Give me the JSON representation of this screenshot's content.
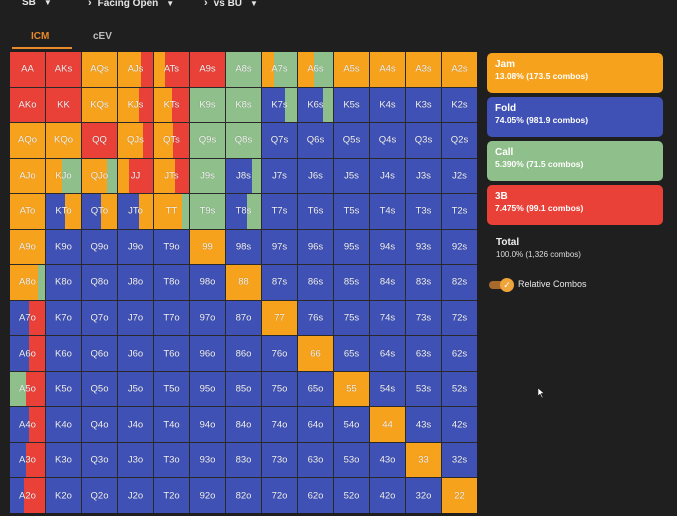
{
  "breadcrumb": {
    "position": "SB",
    "situation": "Facing Open",
    "opponent": "vs BU"
  },
  "tabs": [
    {
      "label": "ICM",
      "active": true
    },
    {
      "label": "cEV",
      "active": false
    }
  ],
  "colors": {
    "jam": "#f7a21c",
    "fold": "#3f51b5",
    "call": "#8fbf8a",
    "threebet": "#e94038",
    "tab_active": "#e8892b",
    "tab_inactive": "#bdbdbd"
  },
  "legend": [
    {
      "key": "jam",
      "title": "Jam",
      "stats": "13.08% (173.5 combos)"
    },
    {
      "key": "fold",
      "title": "Fold",
      "stats": "74.05% (981.9 combos)"
    },
    {
      "key": "call",
      "title": "Call",
      "stats": "5.390% (71.5 combos)"
    },
    {
      "key": "threebet",
      "title": "3B",
      "stats": "7.475% (99.1 combos)"
    }
  ],
  "total": {
    "title": "Total",
    "stats": "100.0% (1,326 combos)"
  },
  "relative_combos": {
    "label": "Relative Combos",
    "checked": true
  },
  "ranks": [
    "A",
    "K",
    "Q",
    "J",
    "T",
    "9",
    "8",
    "7",
    "6",
    "5",
    "4",
    "3",
    "2"
  ],
  "mixes": {
    "AA": [
      [
        "threebet",
        1
      ]
    ],
    "AKs": [
      [
        "threebet",
        1
      ]
    ],
    "AQs": [
      [
        "jam",
        1
      ]
    ],
    "AJs": [
      [
        "jam",
        0.65
      ],
      [
        "threebet",
        0.35
      ]
    ],
    "ATs": [
      [
        "jam",
        0.3
      ],
      [
        "threebet",
        0.7
      ]
    ],
    "A9s": [
      [
        "threebet",
        1
      ]
    ],
    "A8s": [
      [
        "call",
        1
      ]
    ],
    "A7s": [
      [
        "jam",
        0.35
      ],
      [
        "call",
        0.65
      ]
    ],
    "A6s": [
      [
        "jam",
        0.45
      ],
      [
        "call",
        0.55
      ]
    ],
    "A5s": [
      [
        "jam",
        1
      ]
    ],
    "A4s": [
      [
        "jam",
        1
      ]
    ],
    "A3s": [
      [
        "jam",
        1
      ]
    ],
    "A2s": [
      [
        "jam",
        1
      ]
    ],
    "AKo": [
      [
        "threebet",
        1
      ]
    ],
    "KK": [
      [
        "threebet",
        1
      ]
    ],
    "KQs": [
      [
        "jam",
        1
      ]
    ],
    "KJs": [
      [
        "jam",
        0.6
      ],
      [
        "threebet",
        0.4
      ]
    ],
    "KTs": [
      [
        "jam",
        0.5
      ],
      [
        "threebet",
        0.5
      ]
    ],
    "K9s": [
      [
        "call",
        1
      ]
    ],
    "K8s": [
      [
        "call",
        1
      ]
    ],
    "K7s": [
      [
        "fold",
        0.65
      ],
      [
        "call",
        0.35
      ]
    ],
    "K6s": [
      [
        "fold",
        0.7
      ],
      [
        "call",
        0.3
      ]
    ],
    "AQo": [
      [
        "jam",
        1
      ]
    ],
    "KQo": [
      [
        "jam",
        1
      ]
    ],
    "QQ": [
      [
        "threebet",
        1
      ]
    ],
    "QJs": [
      [
        "jam",
        0.7
      ],
      [
        "threebet",
        0.3
      ]
    ],
    "QTs": [
      [
        "jam",
        0.55
      ],
      [
        "threebet",
        0.45
      ]
    ],
    "Q9s": [
      [
        "call",
        1
      ]
    ],
    "Q8s": [
      [
        "call",
        1
      ]
    ],
    "AJo": [
      [
        "jam",
        1
      ]
    ],
    "KJo": [
      [
        "jam",
        0.45
      ],
      [
        "call",
        0.55
      ]
    ],
    "QJo": [
      [
        "jam",
        0.7
      ],
      [
        "call",
        0.3
      ]
    ],
    "JJ": [
      [
        "jam",
        0.3
      ],
      [
        "threebet",
        0.7
      ]
    ],
    "JTs": [
      [
        "jam",
        0.6
      ],
      [
        "threebet",
        0.4
      ]
    ],
    "J9s": [
      [
        "call",
        1
      ]
    ],
    "J8s": [
      [
        "fold",
        0.75
      ],
      [
        "call",
        0.25
      ]
    ],
    "ATo": [
      [
        "jam",
        1
      ]
    ],
    "KTo": [
      [
        "fold",
        0.55
      ],
      [
        "jam",
        0.45
      ]
    ],
    "QTo": [
      [
        "fold",
        0.55
      ],
      [
        "jam",
        0.45
      ]
    ],
    "JTo": [
      [
        "fold",
        0.6
      ],
      [
        "jam",
        0.4
      ]
    ],
    "TT": [
      [
        "jam",
        0.8
      ],
      [
        "call",
        0.2
      ]
    ],
    "T9s": [
      [
        "call",
        1
      ]
    ],
    "T8s": [
      [
        "fold",
        0.6
      ],
      [
        "call",
        0.4
      ]
    ],
    "A9o": [
      [
        "jam",
        1
      ]
    ],
    "99": [
      [
        "jam",
        1
      ]
    ],
    "A8o": [
      [
        "jam",
        0.8
      ],
      [
        "call",
        0.2
      ]
    ],
    "88": [
      [
        "jam",
        1
      ]
    ],
    "A7o": [
      [
        "fold",
        0.55
      ],
      [
        "threebet",
        0.45
      ]
    ],
    "77": [
      [
        "jam",
        1
      ]
    ],
    "A6o": [
      [
        "fold",
        0.55
      ],
      [
        "threebet",
        0.45
      ]
    ],
    "66": [
      [
        "jam",
        1
      ]
    ],
    "A5o": [
      [
        "call",
        0.45
      ],
      [
        "threebet",
        0.55
      ]
    ],
    "55": [
      [
        "jam",
        1
      ]
    ],
    "A4o": [
      [
        "fold",
        0.55
      ],
      [
        "threebet",
        0.45
      ]
    ],
    "44": [
      [
        "jam",
        1
      ]
    ],
    "A3o": [
      [
        "fold",
        0.45
      ],
      [
        "threebet",
        0.55
      ]
    ],
    "33": [
      [
        "jam",
        1
      ]
    ],
    "A2o": [
      [
        "fold",
        0.4
      ],
      [
        "threebet",
        0.6
      ]
    ],
    "22": [
      [
        "jam",
        1
      ]
    ]
  }
}
